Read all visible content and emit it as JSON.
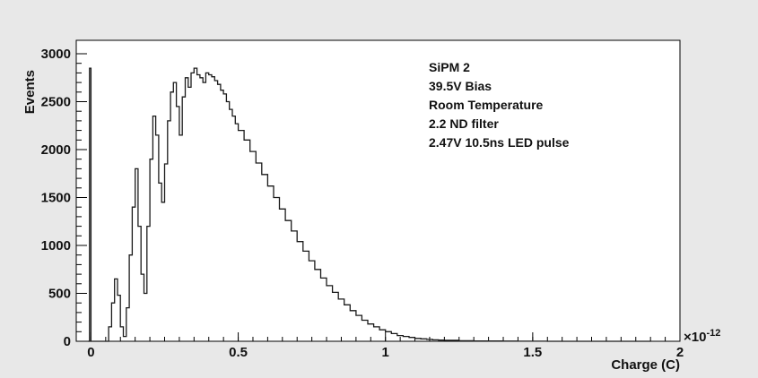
{
  "chart_data": {
    "type": "area",
    "title": "",
    "xlabel": "Charge (C)",
    "ylabel": "Events",
    "x_exponent_label": "×10",
    "x_exponent_power": "-12",
    "xlim": [
      -0.05,
      2.0
    ],
    "ylim": [
      0,
      3000
    ],
    "x_ticks": [
      {
        "value": 0,
        "label": "0"
      },
      {
        "value": 0.5,
        "label": "0.5"
      },
      {
        "value": 1.0,
        "label": "1"
      },
      {
        "value": 1.5,
        "label": "1.5"
      },
      {
        "value": 2.0,
        "label": "2"
      }
    ],
    "y_ticks": [
      {
        "value": 0,
        "label": "0"
      },
      {
        "value": 500,
        "label": "500"
      },
      {
        "value": 1000,
        "label": "1000"
      },
      {
        "value": 1500,
        "label": "1500"
      },
      {
        "value": 2000,
        "label": "2000"
      },
      {
        "value": 2500,
        "label": "2500"
      },
      {
        "value": 3000,
        "label": "3000"
      }
    ],
    "grid": false,
    "annotations": [
      {
        "text": "SiPM 2",
        "color": "#e0141e"
      },
      {
        "text": "39.5V Bias",
        "color": "#111111"
      },
      {
        "text": "Room Temperature",
        "color": "#111111"
      },
      {
        "text": "2.2 ND filter",
        "color": "#111111"
      },
      {
        "text": "2.47V 10.5ns LED pulse",
        "color": "#111111"
      }
    ],
    "series": [
      {
        "x": [
          -0.01,
          -0.005,
          0.0,
          0.005,
          0.01,
          0.03,
          0.05,
          0.06,
          0.07,
          0.08,
          0.09,
          0.1,
          0.11,
          0.12,
          0.13,
          0.14,
          0.15,
          0.16,
          0.17,
          0.18,
          0.19,
          0.2,
          0.21,
          0.22,
          0.23,
          0.24,
          0.25,
          0.26,
          0.27,
          0.28,
          0.29,
          0.3,
          0.31,
          0.32,
          0.33,
          0.34,
          0.35,
          0.36,
          0.37,
          0.38,
          0.39,
          0.4,
          0.41,
          0.42,
          0.43,
          0.44,
          0.45,
          0.46,
          0.47,
          0.48,
          0.49,
          0.5,
          0.52,
          0.54,
          0.56,
          0.58,
          0.6,
          0.62,
          0.64,
          0.66,
          0.68,
          0.7,
          0.72,
          0.74,
          0.76,
          0.78,
          0.8,
          0.82,
          0.84,
          0.86,
          0.88,
          0.9,
          0.92,
          0.94,
          0.96,
          0.98,
          1.0,
          1.02,
          1.04,
          1.06,
          1.08,
          1.1,
          1.12,
          1.14,
          1.16,
          1.18,
          1.2,
          1.25,
          1.3,
          1.35,
          1.4,
          1.45,
          1.5,
          1.55,
          1.6,
          1.65,
          1.7,
          1.75,
          1.8,
          1.85,
          1.9
        ],
        "values": [
          0,
          2850,
          0,
          0,
          0,
          0,
          0,
          150,
          400,
          650,
          480,
          150,
          50,
          350,
          900,
          1400,
          1800,
          1200,
          700,
          500,
          1200,
          1900,
          2350,
          2150,
          1650,
          1450,
          1850,
          2300,
          2600,
          2700,
          2450,
          2150,
          2550,
          2750,
          2650,
          2800,
          2850,
          2780,
          2750,
          2700,
          2800,
          2780,
          2760,
          2720,
          2680,
          2620,
          2580,
          2500,
          2420,
          2350,
          2270,
          2200,
          2100,
          1980,
          1860,
          1740,
          1620,
          1500,
          1380,
          1260,
          1150,
          1040,
          940,
          840,
          750,
          660,
          580,
          510,
          440,
          380,
          320,
          270,
          220,
          180,
          150,
          120,
          100,
          80,
          60,
          50,
          40,
          30,
          25,
          20,
          15,
          12,
          10,
          6,
          4,
          3,
          2,
          1,
          1,
          0,
          0,
          0,
          0,
          0,
          0,
          0,
          0
        ]
      }
    ]
  }
}
